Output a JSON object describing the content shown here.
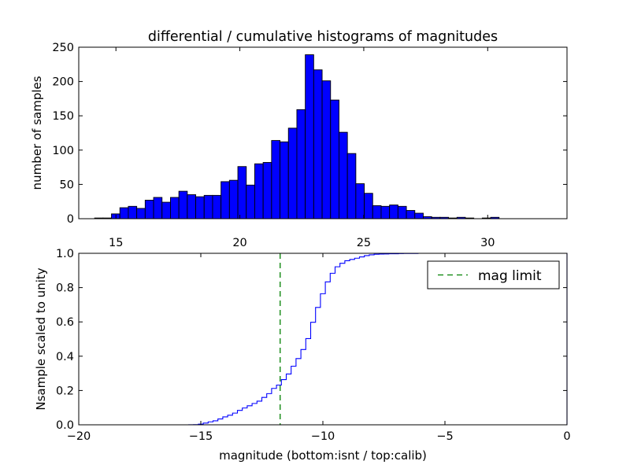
{
  "chart_data": [
    {
      "type": "bar",
      "title": "differential / cumulative histograms of magnitudes",
      "xlabel": "",
      "ylabel": "number of samples",
      "xlim": [
        13.5,
        33.2
      ],
      "ylim": [
        0,
        250
      ],
      "xticks": [
        "15",
        "20",
        "25",
        "30"
      ],
      "xtick_values": [
        15,
        20,
        25,
        30
      ],
      "yticks": [
        "0",
        "50",
        "100",
        "150",
        "200",
        "250"
      ],
      "ytick_values": [
        0,
        50,
        100,
        150,
        200,
        250
      ],
      "bin_start": 14.14,
      "bin_width": 0.34,
      "counts": [
        1,
        1,
        7,
        16,
        18,
        15,
        27,
        31,
        24,
        31,
        40,
        35,
        32,
        34,
        34,
        54,
        56,
        76,
        49,
        80,
        82,
        114,
        112,
        132,
        159,
        239,
        217,
        201,
        173,
        126,
        95,
        51,
        37,
        19,
        18,
        20,
        18,
        12,
        8,
        3,
        2,
        2,
        1,
        2,
        1,
        0,
        1,
        2,
        0,
        0
      ],
      "bar_color": "#0000ff"
    },
    {
      "type": "line",
      "xlabel": "magnitude (bottom:isnt / top:calib)",
      "ylabel": "Nsample scaled to unity",
      "xlim": [
        -20,
        0
      ],
      "ylim": [
        0,
        1
      ],
      "xticks": [
        "−20",
        "−15",
        "−10",
        "−5",
        "0"
      ],
      "xtick_values": [
        -20,
        -15,
        -10,
        -5,
        0
      ],
      "yticks": [
        "0.0",
        "0.2",
        "0.4",
        "0.6",
        "0.8",
        "1.0"
      ],
      "ytick_values": [
        0,
        0.2,
        0.4,
        0.6,
        0.8,
        1.0
      ],
      "step_start": -15.5,
      "step_width": 0.2,
      "step_counts": [
        1,
        1,
        7,
        16,
        18,
        15,
        27,
        31,
        24,
        31,
        40,
        35,
        32,
        34,
        34,
        54,
        56,
        76,
        49,
        80,
        82,
        114,
        112,
        132,
        159,
        239,
        217,
        201,
        173,
        126,
        95,
        51,
        37,
        19,
        18,
        20,
        18,
        12,
        8,
        3,
        2,
        2,
        1,
        2,
        1,
        0,
        1,
        2,
        0,
        0
      ],
      "line_color": "#0000ff",
      "mag_limit_x": -11.75,
      "mag_limit_color": "#008000",
      "legend": [
        {
          "label": "mag limit",
          "style": "dashed",
          "color": "#008000"
        }
      ],
      "legend_loc": "upper right"
    }
  ]
}
